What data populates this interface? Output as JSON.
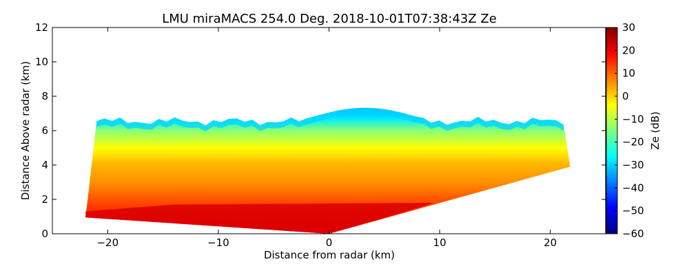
{
  "chart_data": {
    "type": "heatmap",
    "title": "LMU miraMACS 254.0 Deg. 2018-10-01T07:38:43Z  Ze",
    "xlabel": "Distance from radar (km)",
    "ylabel": "Distance Above radar  (km)",
    "xlim": [
      -25,
      25
    ],
    "ylim": [
      0,
      12
    ],
    "xticks": [
      -20,
      -10,
      0,
      10,
      20
    ],
    "xtick_labels": [
      "−20",
      "−10",
      "0",
      "10",
      "20"
    ],
    "yticks": [
      0,
      2,
      4,
      6,
      8,
      10,
      12
    ],
    "ytick_labels": [
      "0",
      "2",
      "4",
      "6",
      "8",
      "10",
      "12"
    ],
    "colorbar": {
      "label": "Ze (dB)",
      "colormap": "jet",
      "range": [
        -60,
        30
      ],
      "ticks": [
        30,
        20,
        10,
        0,
        -10,
        -20,
        -30,
        -40,
        -50,
        -60
      ],
      "tick_labels": [
        "30",
        "20",
        "10",
        "0",
        "−10",
        "−20",
        "−30",
        "−40",
        "−50",
        "−60"
      ]
    },
    "scan": {
      "elevation_deg": 254.0,
      "left_edge_bottom_km": [
        -22,
        0.95
      ],
      "left_edge_top_km": [
        -21,
        6.4
      ],
      "right_edge_bottom_km": [
        21.8,
        3.9
      ],
      "right_edge_top_km": [
        21.2,
        6.0
      ],
      "cloud_top_km": 6.7,
      "cloud_top_max_km": 7.4,
      "strong_layer_top_km": 1.5,
      "values_by_height_km": [
        {
          "h": 0.5,
          "ze": 20
        },
        {
          "h": 1.5,
          "ze": 14
        },
        {
          "h": 3.0,
          "ze": 6
        },
        {
          "h": 4.0,
          "ze": 3
        },
        {
          "h": 5.0,
          "ze": -4
        },
        {
          "h": 6.0,
          "ze": -14
        },
        {
          "h": 6.7,
          "ze": -28
        }
      ]
    }
  }
}
